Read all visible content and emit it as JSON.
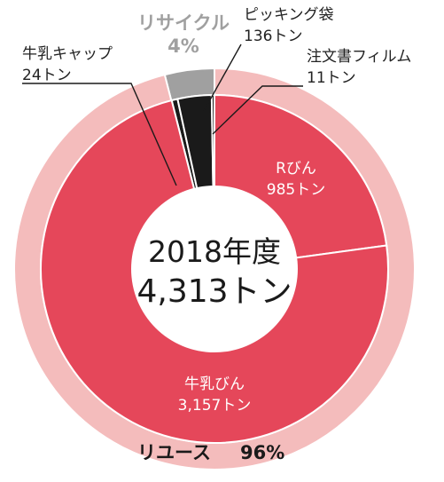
{
  "chart_data": {
    "type": "pie",
    "center": {
      "year_label": "2018年度",
      "total_label": "4,313トン"
    },
    "outer_ring": [
      {
        "name": "リサイクル",
        "percent_label": "4%",
        "percent": 4,
        "color": "#a0a0a0"
      },
      {
        "name": "リユース",
        "percent_label": "96%",
        "percent": 96,
        "color": "#f4bcbc"
      }
    ],
    "inner_ring": [
      {
        "name": "牛乳キャップ",
        "value": 24,
        "value_label": "24トン",
        "color": "#1a1a1a"
      },
      {
        "name": "ピッキング袋",
        "value": 136,
        "value_label": "136トン",
        "color": "#1a1a1a"
      },
      {
        "name": "注文書フィルム",
        "value": 11,
        "value_label": "11トン",
        "color": "#1a1a1a"
      },
      {
        "name": "Rびん",
        "value": 985,
        "value_label": "985トン",
        "color": "#e5475a"
      },
      {
        "name": "牛乳びん",
        "value": 3157,
        "value_label": "3,157トン",
        "color": "#e5475a"
      }
    ]
  }
}
